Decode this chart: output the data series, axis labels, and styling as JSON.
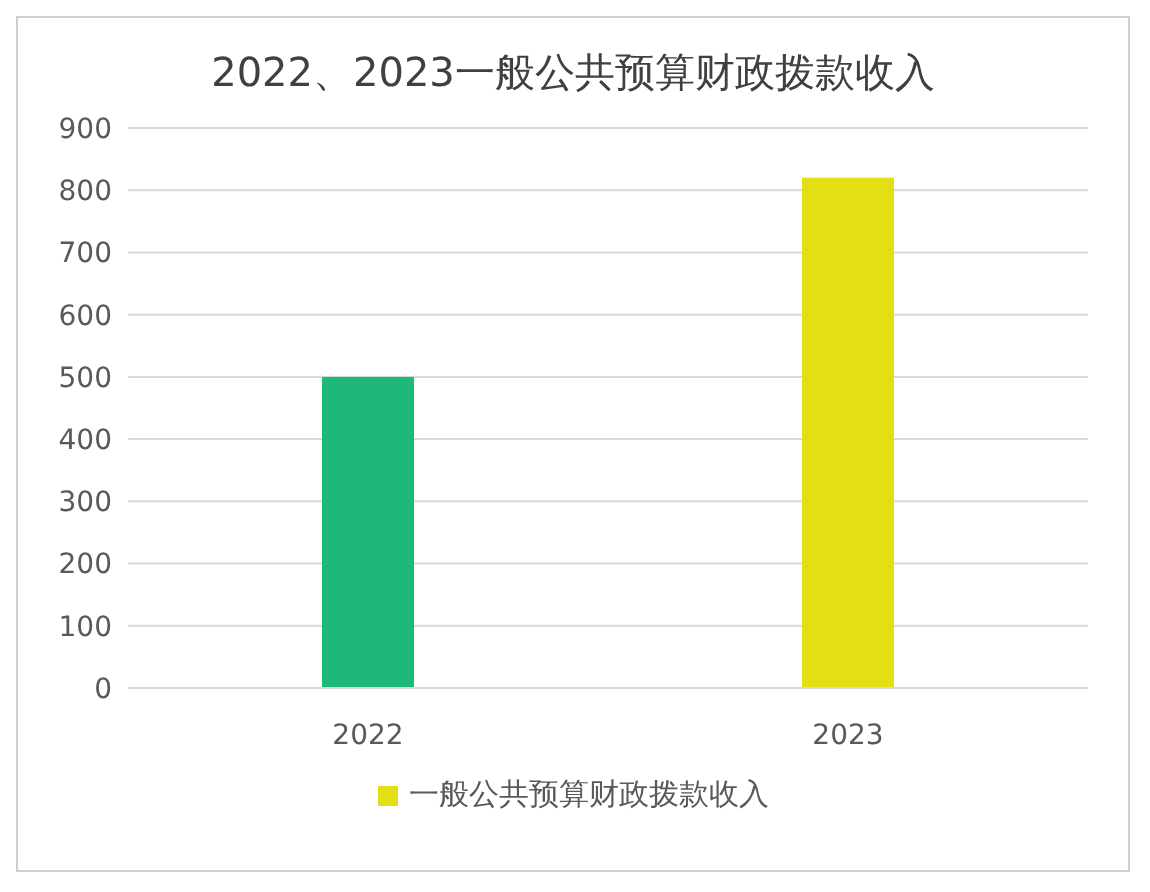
{
  "chart_data": {
    "type": "bar",
    "title": "2022、2023一般公共预算财政拨款收入",
    "categories": [
      "2022",
      "2023"
    ],
    "series": [
      {
        "name": "一般公共预算财政拨款收入",
        "color": "#e3df14",
        "colors": [
          "#1db87a",
          "#e3df14"
        ],
        "values": [
          500,
          820
        ]
      }
    ],
    "ylim": [
      0,
      900
    ],
    "yticks": [
      0,
      100,
      200,
      300,
      400,
      500,
      600,
      700,
      800,
      900
    ],
    "grid": "y",
    "legend": "bottom"
  }
}
